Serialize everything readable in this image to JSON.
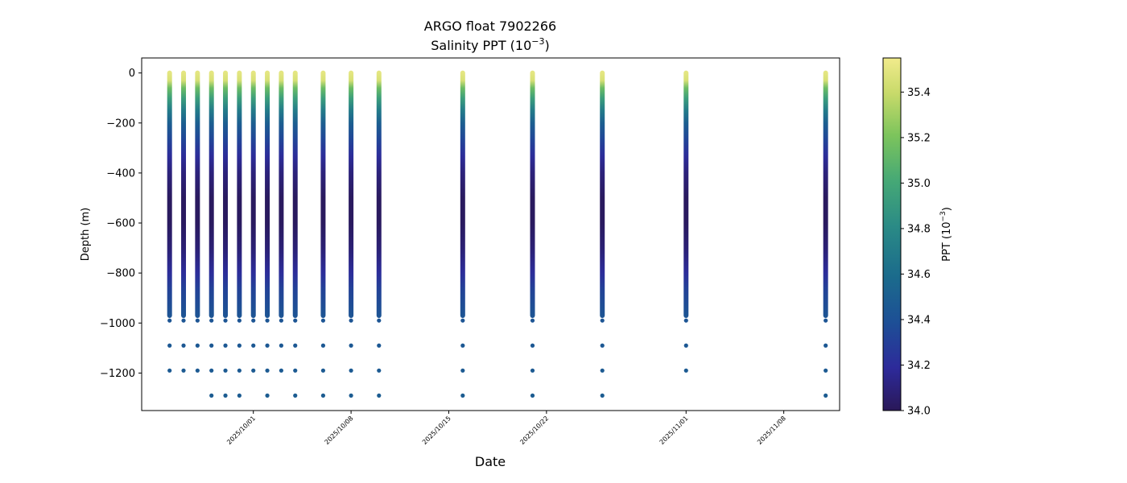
{
  "chart_data": {
    "type": "scatter",
    "title": "ARGO float 7902266",
    "subtitle_prefix": "Salinity PPT (10",
    "subtitle_sup": "−3",
    "subtitle_suffix": ")",
    "xlabel": "Date",
    "ylabel": "Depth (m)",
    "colorbar_label_prefix": "PPT (10",
    "colorbar_label_sup": "−3",
    "colorbar_label_suffix": ")",
    "colormap": "haline",
    "colorbar_range": [
      34.0,
      35.55
    ],
    "colorbar_ticks": [
      "34.0",
      "34.2",
      "34.4",
      "34.6",
      "34.8",
      "35.0",
      "35.2",
      "35.4"
    ],
    "xlim": [
      "2025-09-23",
      "2025-11-12"
    ],
    "ylim": [
      -1350,
      60
    ],
    "x_ticks": [
      "2025/10/01",
      "2025/10/08",
      "2025/10/15",
      "2025/10/22",
      "2025/11/01",
      "2025/11/08"
    ],
    "y_ticks": [
      "0",
      "−200",
      "−400",
      "−600",
      "−800",
      "−1000",
      "−1200"
    ],
    "grid": false,
    "profile_dates": [
      "2025-09-25",
      "2025-09-26",
      "2025-09-27",
      "2025-09-28",
      "2025-09-29",
      "2025-09-30",
      "2025-10-01",
      "2025-10-02",
      "2025-10-03",
      "2025-10-04",
      "2025-10-06",
      "2025-10-08",
      "2025-10-10",
      "2025-10-16",
      "2025-10-21",
      "2025-10-26",
      "2025-11-01",
      "2025-11-11"
    ],
    "deep_points": [
      {
        "depth": -990,
        "salinity": 34.43,
        "dates": [
          "2025-09-25",
          "2025-09-26",
          "2025-09-27",
          "2025-09-28",
          "2025-09-29",
          "2025-09-30",
          "2025-10-01",
          "2025-10-02",
          "2025-10-03",
          "2025-10-04",
          "2025-10-06",
          "2025-10-08",
          "2025-10-10",
          "2025-10-16",
          "2025-10-21",
          "2025-10-26",
          "2025-11-01",
          "2025-11-11"
        ]
      },
      {
        "depth": -1090,
        "salinity": 34.45,
        "dates": [
          "2025-09-25",
          "2025-09-26",
          "2025-09-27",
          "2025-09-28",
          "2025-09-29",
          "2025-09-30",
          "2025-10-01",
          "2025-10-02",
          "2025-10-03",
          "2025-10-04",
          "2025-10-06",
          "2025-10-08",
          "2025-10-10",
          "2025-10-16",
          "2025-10-21",
          "2025-10-26",
          "2025-11-01",
          "2025-11-11"
        ]
      },
      {
        "depth": -1190,
        "salinity": 34.47,
        "dates": [
          "2025-09-25",
          "2025-09-26",
          "2025-09-27",
          "2025-09-28",
          "2025-09-29",
          "2025-09-30",
          "2025-10-01",
          "2025-10-02",
          "2025-10-03",
          "2025-10-04",
          "2025-10-06",
          "2025-10-08",
          "2025-10-10",
          "2025-10-16",
          "2025-10-21",
          "2025-10-26",
          "2025-11-01",
          "2025-11-11"
        ]
      },
      {
        "depth": -1290,
        "salinity": 34.48,
        "dates": [
          "2025-09-28",
          "2025-09-29",
          "2025-09-30",
          "2025-10-02",
          "2025-10-04",
          "2025-10-06",
          "2025-10-08",
          "2025-10-10",
          "2025-10-16",
          "2025-10-21",
          "2025-10-26",
          "2025-11-11"
        ]
      }
    ],
    "profile_depth_range": [
      -970,
      0
    ],
    "salinity_profile": [
      {
        "depth": 0,
        "salinity": 35.5
      },
      {
        "depth": -30,
        "salinity": 35.45
      },
      {
        "depth": -60,
        "salinity": 35.15
      },
      {
        "depth": -100,
        "salinity": 34.95
      },
      {
        "depth": -150,
        "salinity": 34.7
      },
      {
        "depth": -200,
        "salinity": 34.5
      },
      {
        "depth": -260,
        "salinity": 34.35
      },
      {
        "depth": -330,
        "salinity": 34.2
      },
      {
        "depth": -400,
        "salinity": 34.1
      },
      {
        "depth": -500,
        "salinity": 34.02
      },
      {
        "depth": -600,
        "salinity": 34.02
      },
      {
        "depth": -700,
        "salinity": 34.08
      },
      {
        "depth": -800,
        "salinity": 34.2
      },
      {
        "depth": -870,
        "salinity": 34.32
      },
      {
        "depth": -970,
        "salinity": 34.42
      }
    ]
  }
}
